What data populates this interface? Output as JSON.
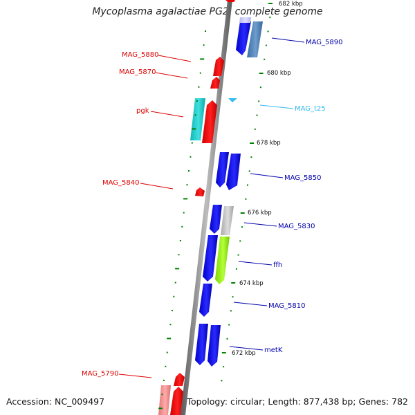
{
  "title": "Mycoplasma agalactiae PG2, complete genome",
  "footer": {
    "accession": "Accession: NC_009497",
    "summary": "Topology: circular; Length: 877,438 bp; Genes: 782"
  },
  "colors": {
    "forward_cds": "#ff0000",
    "reverse_cds": "#0000ff",
    "trna": "#33bbee",
    "backbone": "#888888",
    "tick": "#008000"
  },
  "ticks": [
    "682 kbp",
    "680 kbp",
    "678 kbp",
    "676 kbp",
    "674 kbp",
    "672 kbp"
  ],
  "genes": [
    {
      "label": "MAG_5890",
      "color": "#0000aa"
    },
    {
      "label": "MAG_5880",
      "color": "#dd0000"
    },
    {
      "label": "MAG_5870",
      "color": "#dd0000"
    },
    {
      "label": "MAG_t25",
      "color": "#33bbee"
    },
    {
      "label": "pgk",
      "color": "#dd0000"
    },
    {
      "label": "MAG_5850",
      "color": "#0000aa"
    },
    {
      "label": "MAG_5840",
      "color": "#dd0000"
    },
    {
      "label": "MAG_5830",
      "color": "#0000aa"
    },
    {
      "label": "ffh",
      "color": "#0000aa"
    },
    {
      "label": "MAG_5810",
      "color": "#0000aa"
    },
    {
      "label": "metK",
      "color": "#0000aa"
    },
    {
      "label": "MAG_5790",
      "color": "#dd0000"
    }
  ]
}
